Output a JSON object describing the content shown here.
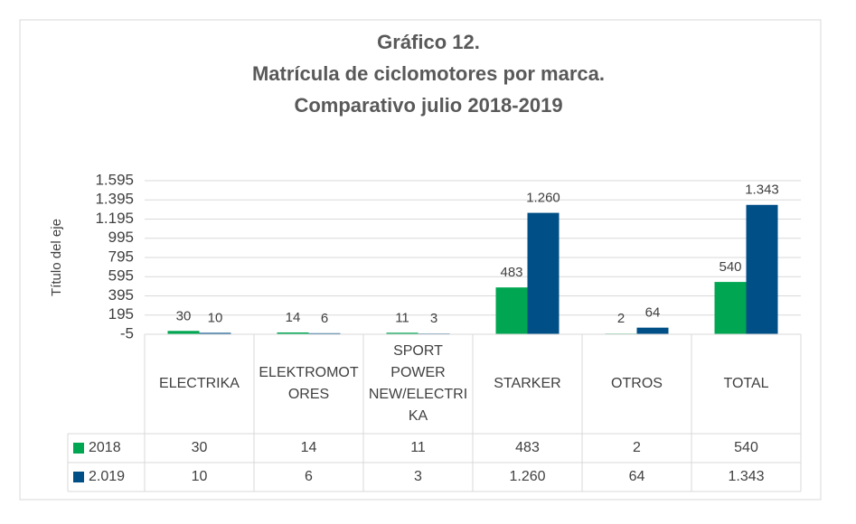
{
  "chart_data": {
    "type": "bar",
    "title": [
      "Gráfico 12.",
      "Matrícula de ciclomotores por marca.",
      "Comparativo julio 2018-2019"
    ],
    "y_label": "Título del eje",
    "categories": [
      "ELECTRIKA",
      "ELEKTROMOTORES",
      "SPORT POWER NEW/ELECTRIKA",
      "STARKER",
      "OTROS",
      "TOTAL"
    ],
    "series": [
      {
        "name": "2018",
        "color": "#00a651",
        "values": [
          30,
          14,
          11,
          483,
          2,
          540
        ]
      },
      {
        "name": "2.019",
        "color": "#004f87",
        "values": [
          10,
          6,
          3,
          1260,
          64,
          1343
        ],
        "value_labels": [
          "10",
          "6",
          "3",
          "1.260",
          "64",
          "1.343"
        ]
      }
    ],
    "ylim": [
      -5,
      1595
    ],
    "yticks": [
      -5,
      195,
      395,
      595,
      795,
      995,
      {
        "value": 1195,
        "label": "1.195"
      },
      {
        "value": 1395,
        "label": "1.395"
      },
      {
        "value": 1595,
        "label": "1.595"
      }
    ],
    "grid": true,
    "data_table": true
  }
}
